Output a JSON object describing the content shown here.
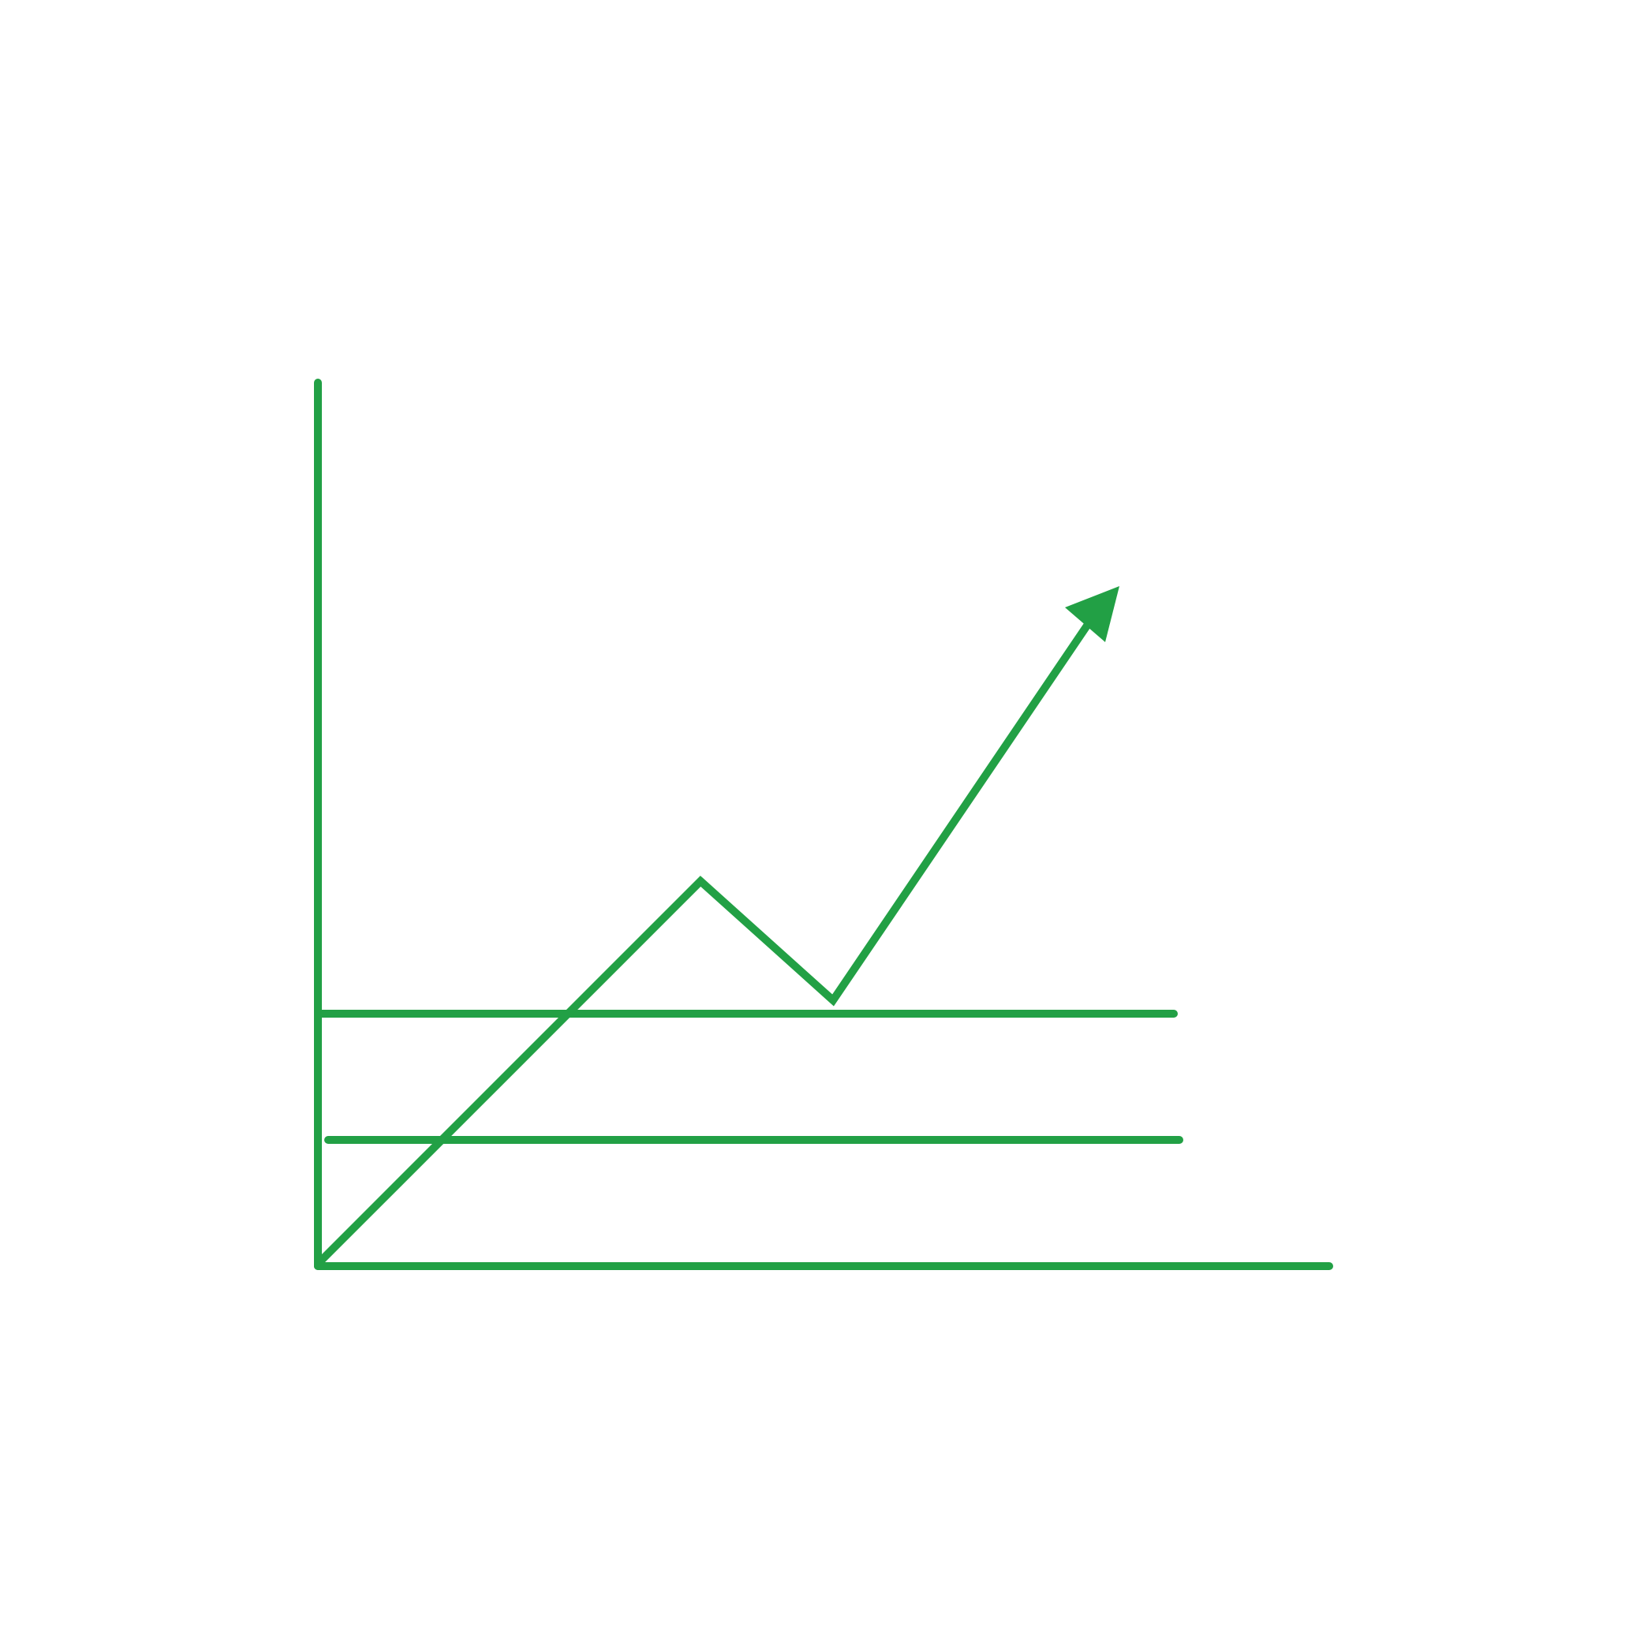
{
  "icon": {
    "name": "growth-chart-icon",
    "stroke_color": "#22a045",
    "background_color": "#ffffff"
  }
}
